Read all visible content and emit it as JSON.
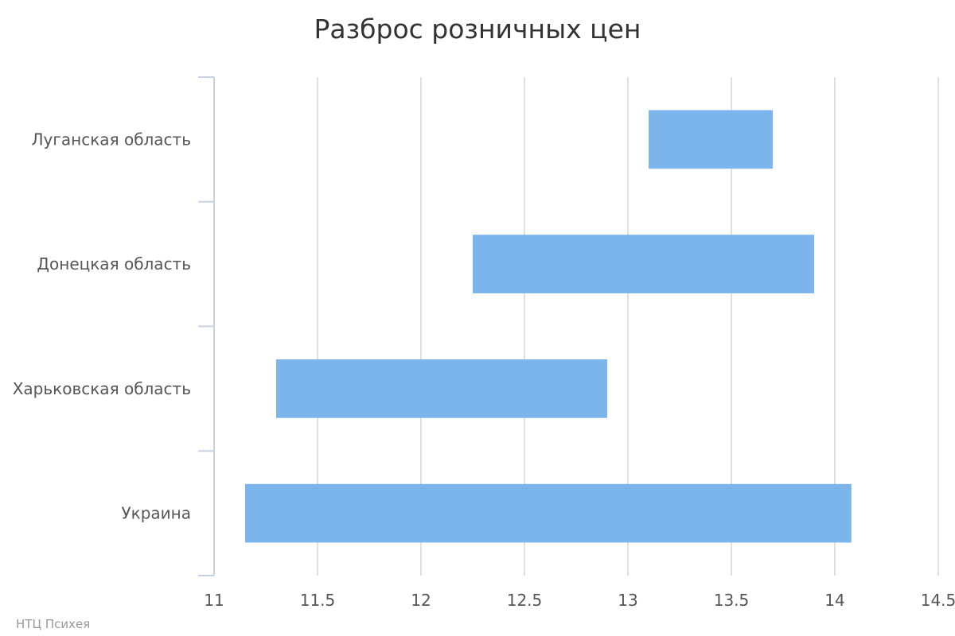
{
  "chart_data": {
    "type": "bar",
    "orientation": "horizontal",
    "subtype": "floating-range",
    "title": "Разброс розничных цен",
    "xlabel": "",
    "ylabel": "",
    "categories": [
      "Луганская область",
      "Донецкая область",
      "Харьковская область",
      "Украина"
    ],
    "series": [
      {
        "ranges": [
          [
            13.1,
            13.7
          ],
          [
            12.25,
            13.9
          ],
          [
            11.3,
            12.9
          ],
          [
            11.15,
            14.08
          ]
        ]
      }
    ],
    "xlim": [
      11,
      14.5
    ],
    "xticks": [
      11,
      11.5,
      12,
      12.5,
      13,
      13.5,
      14,
      14.5
    ],
    "xtick_labels": [
      "11",
      "11.5",
      "12",
      "12.5",
      "13",
      "13.5",
      "14",
      "14.5"
    ],
    "grid": true,
    "legend": "none",
    "bar_color": "#7cb5ec"
  },
  "credit": "НТЦ Психея",
  "colors": {
    "bar": "#7cb5ec",
    "grid": "#e0e0e0",
    "axis": "#c6d2e4"
  }
}
